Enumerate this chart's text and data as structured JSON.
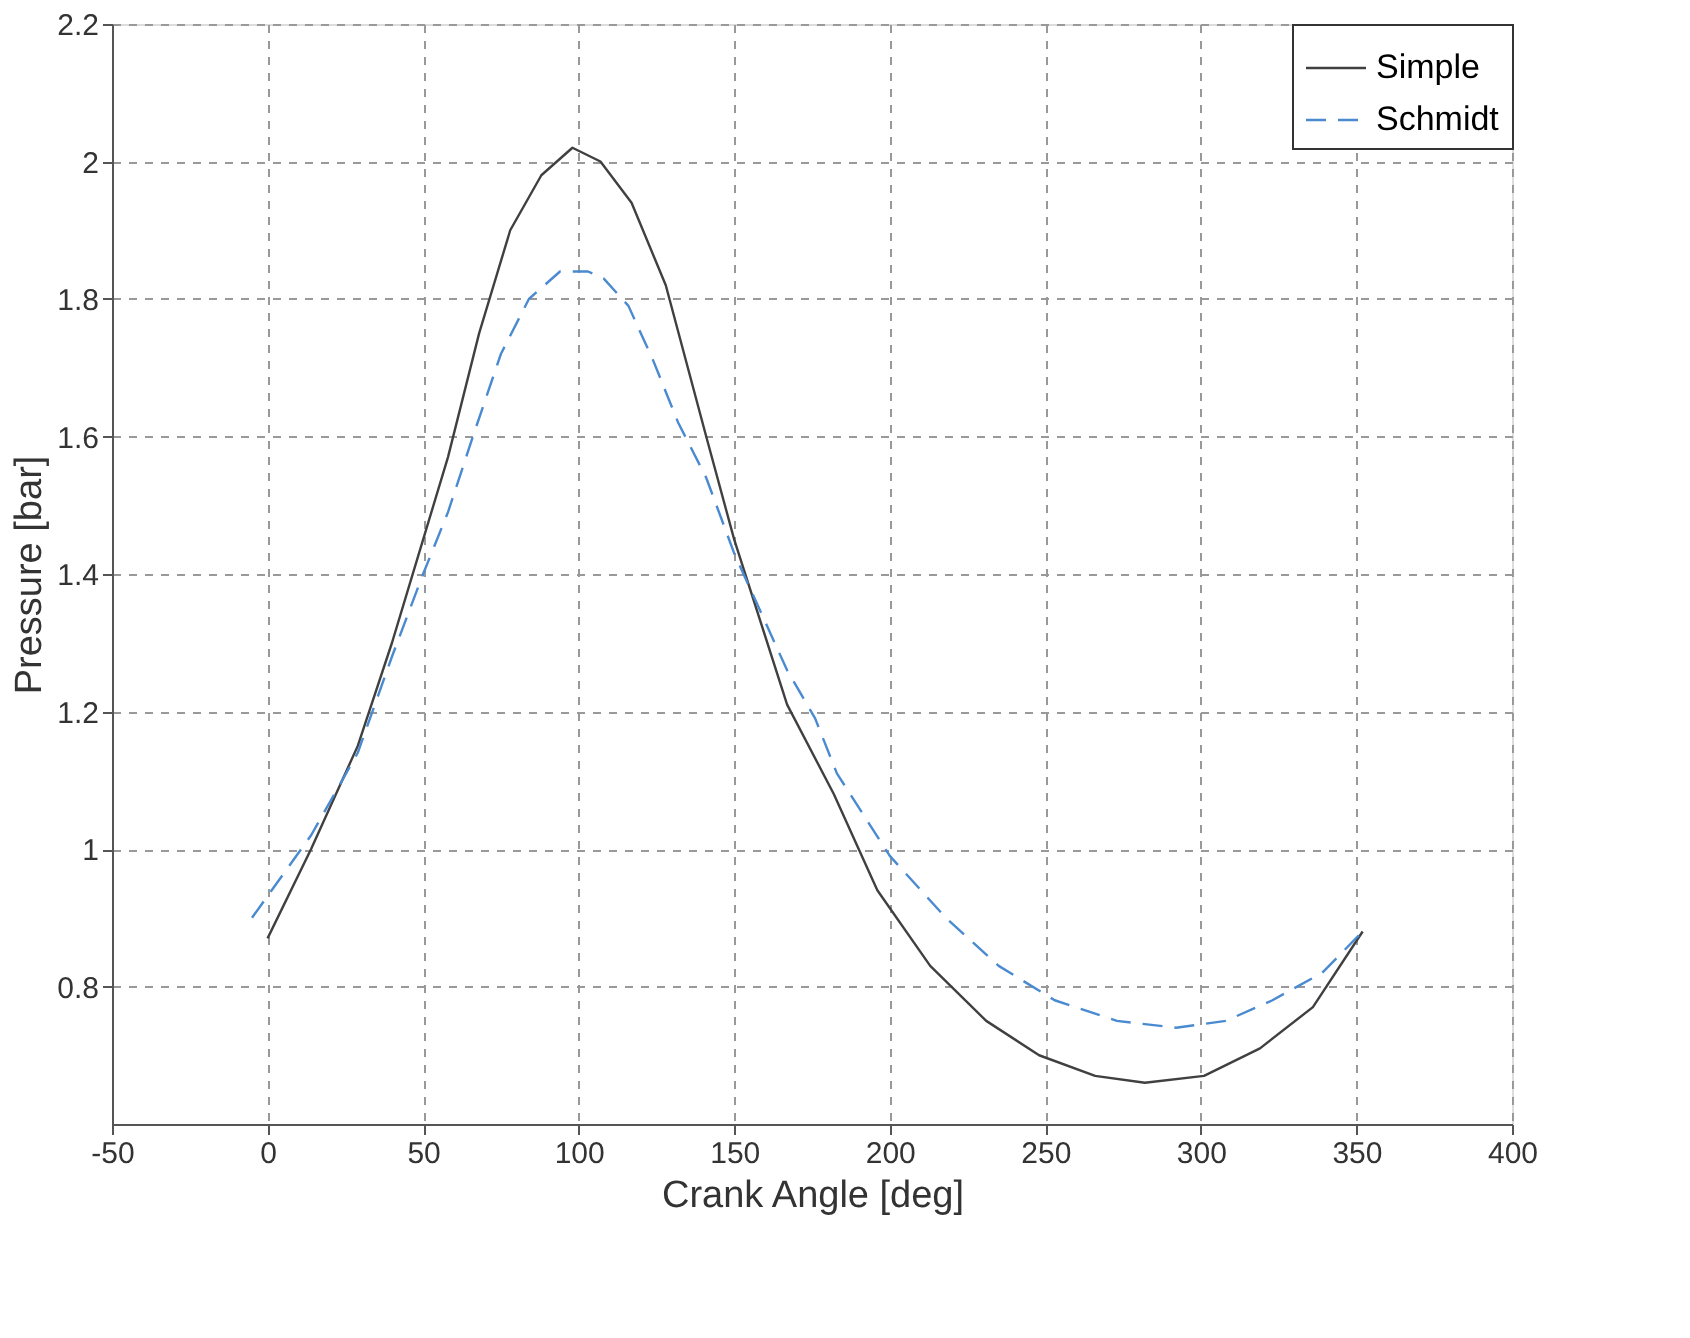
{
  "chart_data": {
    "type": "line",
    "xlabel": "Crank Angle [deg]",
    "ylabel": "Pressure [bar]",
    "xlim": [
      -50,
      400
    ],
    "xticks": [
      -50,
      0,
      50,
      100,
      150,
      200,
      250,
      300,
      350,
      400
    ],
    "ylim": [
      0.6,
      2.2
    ],
    "yticks": [
      0.8,
      1,
      1.2,
      1.4,
      1.6,
      1.8,
      2,
      2.2
    ],
    "grid": true,
    "legend": "top right",
    "series": [
      {
        "name": "Simple",
        "color": "#404040",
        "line_style": "solid",
        "x": [
          0,
          14,
          29,
          40,
          50,
          58,
          68,
          78,
          88,
          98,
          107,
          117,
          128,
          141,
          150,
          167,
          182,
          196,
          213,
          231,
          248,
          266,
          282,
          301,
          319,
          336,
          352
        ],
        "values": [
          0.87,
          1.0,
          1.15,
          1.3,
          1.45,
          1.57,
          1.75,
          1.9,
          1.98,
          2.02,
          2.0,
          1.94,
          1.82,
          1.6,
          1.45,
          1.21,
          1.08,
          0.94,
          0.83,
          0.75,
          0.7,
          0.67,
          0.66,
          0.67,
          0.71,
          0.77,
          0.88
        ]
      },
      {
        "name": "Schmidt",
        "color": "#4a8ad0",
        "line_style": "dashed",
        "x": [
          -5,
          14,
          29,
          40,
          50,
          58,
          66,
          75,
          84,
          94,
          103,
          108,
          116,
          124,
          132,
          141,
          150,
          159,
          167,
          176,
          183,
          200,
          218,
          235,
          253,
          273,
          292,
          308,
          323,
          339,
          352
        ],
        "values": [
          0.9,
          1.02,
          1.14,
          1.28,
          1.4,
          1.49,
          1.6,
          1.72,
          1.8,
          1.84,
          1.84,
          1.83,
          1.79,
          1.71,
          1.62,
          1.54,
          1.43,
          1.34,
          1.26,
          1.19,
          1.11,
          0.99,
          0.9,
          0.83,
          0.78,
          0.75,
          0.74,
          0.75,
          0.78,
          0.82,
          0.88
        ]
      }
    ]
  }
}
